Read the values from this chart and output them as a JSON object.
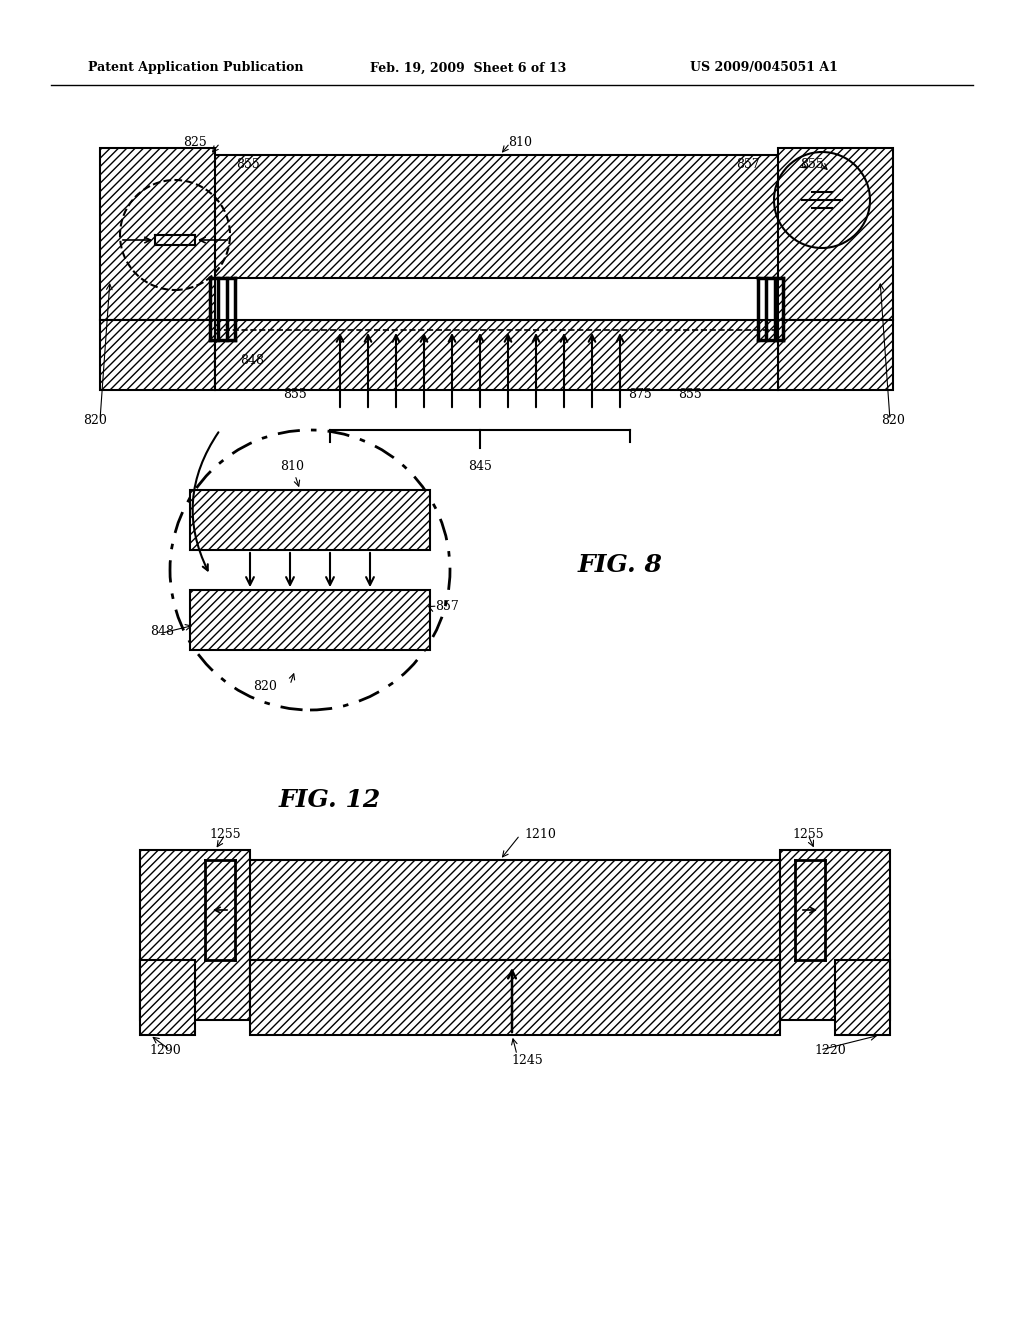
{
  "bg_color": "#ffffff",
  "header_text": "Patent Application Publication",
  "header_date": "Feb. 19, 2009  Sheet 6 of 13",
  "header_patent": "US 2009/0045051 A1",
  "fig8_label": "FIG. 8",
  "fig12_label": "FIG. 12",
  "hatch_pattern": "////",
  "line_color": "#000000",
  "hatch_color": "#000000"
}
